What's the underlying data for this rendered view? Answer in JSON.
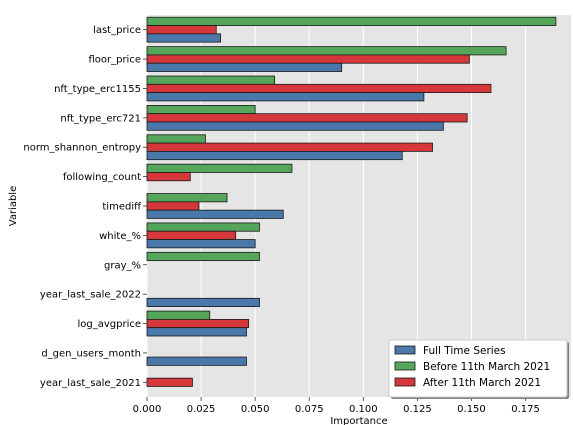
{
  "chart_data": {
    "type": "bar",
    "orientation": "horizontal",
    "xlabel": "Importance",
    "ylabel": "Variable",
    "xlim": [
      0,
      0.196
    ],
    "xticks": [
      "0.000",
      "0.025",
      "0.050",
      "0.075",
      "0.100",
      "0.125",
      "0.150",
      "0.175"
    ],
    "xtick_values": [
      0,
      0.025,
      0.05,
      0.075,
      0.1,
      0.125,
      0.15,
      0.175
    ],
    "grid": true,
    "legend_position": "bottom-right",
    "categories": [
      "last_price",
      "floor_price",
      "nft_type_erc1155",
      "nft_type_erc721",
      "norm_shannon_entropy",
      "following_count",
      "timediff",
      "white_%",
      "gray_%",
      "year_last_sale_2022",
      "log_avgprice",
      "d_gen_users_month",
      "year_last_sale_2021"
    ],
    "series": [
      {
        "name": "Before 11th March 2021",
        "color": "#55a65a",
        "values": [
          0.189,
          0.166,
          0.059,
          0.05,
          0.027,
          0.067,
          0.037,
          0.052,
          0.052,
          null,
          0.029,
          null,
          null
        ]
      },
      {
        "name": "After 11th March 2021",
        "color": "#d6373b",
        "values": [
          0.032,
          0.149,
          0.159,
          0.148,
          0.132,
          0.02,
          0.024,
          0.041,
          null,
          null,
          0.047,
          null,
          0.021
        ]
      },
      {
        "name": "Full Time Series",
        "color": "#4a78aa",
        "values": [
          0.034,
          0.09,
          0.128,
          0.137,
          0.118,
          null,
          0.063,
          0.05,
          null,
          0.052,
          0.046,
          0.046,
          null
        ]
      }
    ],
    "legend_order": [
      "Full Time Series",
      "Before 11th March 2021",
      "After 11th March 2021"
    ]
  }
}
